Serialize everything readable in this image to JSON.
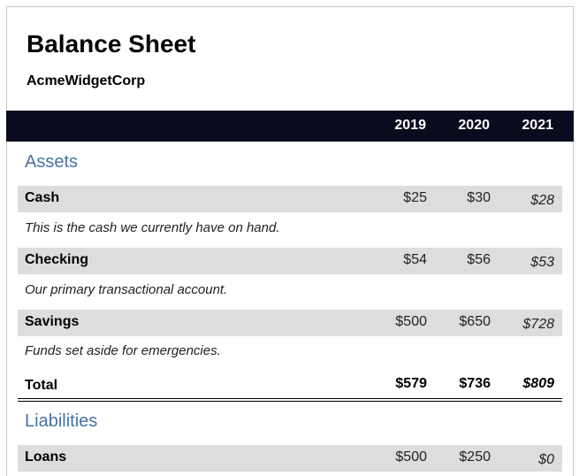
{
  "header": {
    "title": "Balance Sheet",
    "company": "AcmeWidgetCorp",
    "years": [
      "2019",
      "2020",
      "2021"
    ]
  },
  "assets": {
    "heading": "Assets",
    "rows": [
      {
        "label": "Cash",
        "values": [
          "$25",
          "$30",
          "$28"
        ],
        "description": "This is the cash we currently have on hand."
      },
      {
        "label": "Checking",
        "values": [
          "$54",
          "$56",
          "$53"
        ],
        "description": "Our primary transactional account."
      },
      {
        "label": "Savings",
        "values": [
          "$500",
          "$650",
          "$728"
        ],
        "description": "Funds set aside for emergencies."
      }
    ],
    "total": {
      "label": "Total",
      "values": [
        "$579",
        "$736",
        "$809"
      ]
    }
  },
  "liabilities": {
    "heading": "Liabilities",
    "rows": [
      {
        "label": "Loans",
        "values": [
          "$500",
          "$250",
          "$0"
        ]
      }
    ]
  },
  "colors": {
    "header_bar": "#0b0b1f",
    "section_heading": "#4a72a6",
    "row_background": "#dddddd"
  }
}
